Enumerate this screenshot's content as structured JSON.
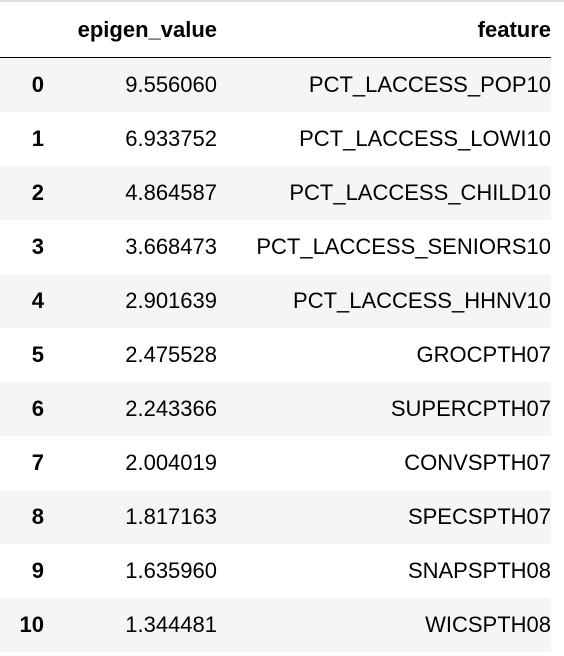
{
  "table": {
    "index_header": "",
    "columns": [
      "epigen_value",
      "feature"
    ],
    "rows": [
      {
        "index": "0",
        "epigen_value": "9.556060",
        "feature": "PCT_LACCESS_POP10"
      },
      {
        "index": "1",
        "epigen_value": "6.933752",
        "feature": "PCT_LACCESS_LOWI10"
      },
      {
        "index": "2",
        "epigen_value": "4.864587",
        "feature": "PCT_LACCESS_CHILD10"
      },
      {
        "index": "3",
        "epigen_value": "3.668473",
        "feature": "PCT_LACCESS_SENIORS10"
      },
      {
        "index": "4",
        "epigen_value": "2.901639",
        "feature": "PCT_LACCESS_HHNV10"
      },
      {
        "index": "5",
        "epigen_value": "2.475528",
        "feature": "GROCPTH07"
      },
      {
        "index": "6",
        "epigen_value": "2.243366",
        "feature": "SUPERCPTH07"
      },
      {
        "index": "7",
        "epigen_value": "2.004019",
        "feature": "CONVSPTH07"
      },
      {
        "index": "8",
        "epigen_value": "1.817163",
        "feature": "SPECSPTH07"
      },
      {
        "index": "9",
        "epigen_value": "1.635960",
        "feature": "SNAPSPTH08"
      },
      {
        "index": "10",
        "epigen_value": "1.344481",
        "feature": "WICSPTH08"
      }
    ]
  }
}
